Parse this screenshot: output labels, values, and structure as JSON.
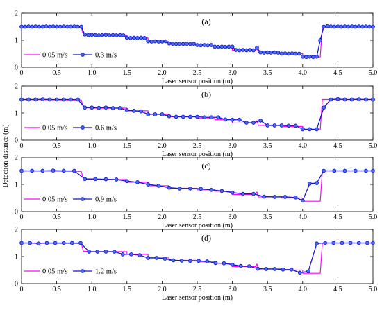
{
  "figure": {
    "ylabel": "Detection distance (m)"
  },
  "chart_data": [
    {
      "type": "line",
      "panel_label": "(a)",
      "xlabel": "Laser sensor position (m)",
      "xlim": [
        0,
        5
      ],
      "ylim": [
        0,
        2
      ],
      "xticks": [
        "0",
        "0.5",
        "1.0",
        "1.5",
        "2.0",
        "2.5",
        "3.0",
        "3.5",
        "4.0",
        "4.5",
        "5.0"
      ],
      "yticks": [
        "0",
        "1",
        "2"
      ],
      "legend_position": "bottom-left",
      "series": [
        {
          "name": "0.05 m/s",
          "color": "#ff00ff",
          "marker": "none",
          "x": [
            0,
            0.85,
            0.88,
            1.0,
            1.5,
            1.5,
            1.8,
            1.8,
            2.1,
            2.1,
            2.5,
            2.5,
            2.75,
            2.75,
            3.0,
            3.0,
            3.33,
            3.35,
            3.37,
            3.7,
            3.7,
            4.0,
            4.0,
            4.25,
            4.28,
            5.0
          ],
          "y": [
            1.5,
            1.48,
            1.2,
            1.18,
            1.18,
            1.08,
            1.08,
            0.95,
            0.95,
            0.86,
            0.86,
            0.8,
            0.8,
            0.75,
            0.75,
            0.63,
            0.63,
            0.72,
            0.54,
            0.54,
            0.5,
            0.5,
            0.38,
            0.38,
            1.5,
            1.5
          ]
        },
        {
          "name": "0.3 m/s",
          "color": "#1414c8",
          "marker": "circle",
          "x": [
            0,
            0.05,
            0.1,
            0.15,
            0.2,
            0.25,
            0.3,
            0.35,
            0.4,
            0.45,
            0.5,
            0.55,
            0.6,
            0.65,
            0.7,
            0.75,
            0.8,
            0.85,
            0.9,
            0.95,
            1.0,
            1.05,
            1.1,
            1.15,
            1.2,
            1.25,
            1.3,
            1.35,
            1.4,
            1.45,
            1.5,
            1.55,
            1.6,
            1.65,
            1.7,
            1.75,
            1.8,
            1.85,
            1.9,
            1.95,
            2.0,
            2.05,
            2.1,
            2.15,
            2.2,
            2.25,
            2.3,
            2.35,
            2.4,
            2.45,
            2.5,
            2.55,
            2.6,
            2.65,
            2.7,
            2.75,
            2.8,
            2.85,
            2.9,
            2.95,
            3.0,
            3.05,
            3.1,
            3.15,
            3.2,
            3.25,
            3.3,
            3.35,
            3.4,
            3.45,
            3.5,
            3.55,
            3.6,
            3.65,
            3.7,
            3.75,
            3.8,
            3.85,
            3.9,
            3.95,
            4.0,
            4.05,
            4.1,
            4.15,
            4.2,
            4.25,
            4.3,
            4.35,
            4.4,
            4.45,
            4.5,
            4.55,
            4.6,
            4.65,
            4.7,
            4.75,
            4.8,
            4.85,
            4.9,
            4.95,
            5.0
          ],
          "y": [
            1.5,
            1.5,
            1.51,
            1.5,
            1.51,
            1.5,
            1.5,
            1.51,
            1.5,
            1.51,
            1.5,
            1.5,
            1.51,
            1.5,
            1.5,
            1.51,
            1.5,
            1.5,
            1.21,
            1.19,
            1.2,
            1.19,
            1.18,
            1.19,
            1.2,
            1.18,
            1.19,
            1.18,
            1.19,
            1.18,
            1.09,
            1.08,
            1.09,
            1.08,
            1.09,
            1.08,
            0.96,
            0.95,
            0.96,
            0.95,
            0.95,
            0.96,
            0.88,
            0.87,
            0.86,
            0.87,
            0.86,
            0.87,
            0.86,
            0.87,
            0.82,
            0.81,
            0.82,
            0.81,
            0.82,
            0.76,
            0.75,
            0.76,
            0.75,
            0.76,
            0.76,
            0.64,
            0.63,
            0.64,
            0.63,
            0.64,
            0.63,
            0.72,
            0.55,
            0.54,
            0.55,
            0.54,
            0.55,
            0.54,
            0.5,
            0.51,
            0.5,
            0.51,
            0.5,
            0.5,
            0.39,
            0.38,
            0.39,
            0.38,
            0.39,
            1.0,
            1.5,
            1.52,
            1.51,
            1.5,
            1.51,
            1.5,
            1.51,
            1.5,
            1.51,
            1.5,
            1.51,
            1.5,
            1.51,
            1.5,
            1.5
          ]
        }
      ]
    },
    {
      "type": "line",
      "panel_label": "(b)",
      "xlabel": "Laser sensor position (m)",
      "xlim": [
        0,
        5
      ],
      "ylim": [
        0,
        2
      ],
      "xticks": [
        "0",
        "0.5",
        "1.0",
        "1.5",
        "2.0",
        "2.5",
        "3.0",
        "3.5",
        "4.0",
        "4.5",
        "5.0"
      ],
      "yticks": [
        "0",
        "1",
        "2"
      ],
      "legend_position": "bottom-left",
      "series": [
        {
          "name": "0.05 m/s",
          "color": "#ff00ff",
          "marker": "none",
          "x": [
            0,
            0.85,
            0.88,
            1.0,
            1.5,
            1.5,
            1.8,
            1.8,
            2.1,
            2.1,
            2.5,
            2.5,
            2.75,
            2.75,
            3.0,
            3.0,
            3.33,
            3.35,
            3.37,
            3.7,
            3.7,
            4.0,
            4.0,
            4.25,
            4.28,
            5.0
          ],
          "y": [
            1.5,
            1.48,
            1.2,
            1.18,
            1.18,
            1.08,
            1.08,
            0.95,
            0.95,
            0.86,
            0.86,
            0.8,
            0.8,
            0.75,
            0.75,
            0.63,
            0.63,
            0.72,
            0.54,
            0.54,
            0.5,
            0.5,
            0.38,
            0.38,
            1.5,
            1.5
          ]
        },
        {
          "name": "0.6 m/s",
          "color": "#1414c8",
          "marker": "circle",
          "x": [
            0,
            0.1,
            0.2,
            0.3,
            0.4,
            0.5,
            0.6,
            0.7,
            0.8,
            0.9,
            1.0,
            1.1,
            1.2,
            1.3,
            1.4,
            1.5,
            1.6,
            1.7,
            1.8,
            1.9,
            2.0,
            2.1,
            2.2,
            2.3,
            2.4,
            2.5,
            2.6,
            2.7,
            2.8,
            2.9,
            3.0,
            3.1,
            3.2,
            3.3,
            3.4,
            3.5,
            3.6,
            3.7,
            3.8,
            3.9,
            4.0,
            4.1,
            4.2,
            4.3,
            4.4,
            4.5,
            4.6,
            4.7,
            4.8,
            4.9,
            5.0
          ],
          "y": [
            1.5,
            1.5,
            1.5,
            1.51,
            1.5,
            1.5,
            1.5,
            1.5,
            1.5,
            1.2,
            1.2,
            1.19,
            1.2,
            1.18,
            1.18,
            1.1,
            1.08,
            1.06,
            0.95,
            0.95,
            0.95,
            0.88,
            0.86,
            0.86,
            0.86,
            0.86,
            0.84,
            0.84,
            0.84,
            0.76,
            0.75,
            0.75,
            0.64,
            0.64,
            0.72,
            0.54,
            0.54,
            0.54,
            0.53,
            0.53,
            0.4,
            0.4,
            0.4,
            1.2,
            1.5,
            1.52,
            1.5,
            1.5,
            1.51,
            1.5,
            1.5
          ]
        }
      ]
    },
    {
      "type": "line",
      "panel_label": "(c)",
      "xlabel": "Laser sensor position (m)",
      "xlim": [
        0,
        5
      ],
      "ylim": [
        0,
        2
      ],
      "xticks": [
        "0",
        "0.5",
        "1.0",
        "1.5",
        "2.0",
        "2.5",
        "3.0",
        "3.5",
        "4.0",
        "4.5",
        "5.0"
      ],
      "yticks": [
        "0",
        "1",
        "2"
      ],
      "legend_position": "bottom-left",
      "series": [
        {
          "name": "0.05 m/s",
          "color": "#ff00ff",
          "marker": "none",
          "x": [
            0,
            0.85,
            0.88,
            1.0,
            1.5,
            1.5,
            1.8,
            1.8,
            2.1,
            2.1,
            2.5,
            2.5,
            2.75,
            2.75,
            3.0,
            3.0,
            3.33,
            3.35,
            3.37,
            3.7,
            3.7,
            4.0,
            4.0,
            4.25,
            4.28,
            5.0
          ],
          "y": [
            1.5,
            1.48,
            1.2,
            1.18,
            1.18,
            1.08,
            1.08,
            0.95,
            0.95,
            0.86,
            0.86,
            0.8,
            0.8,
            0.75,
            0.75,
            0.63,
            0.63,
            0.72,
            0.54,
            0.54,
            0.5,
            0.5,
            0.38,
            0.38,
            1.5,
            1.5
          ]
        },
        {
          "name": "0.9 m/s",
          "color": "#1414c8",
          "marker": "circle",
          "x": [
            0,
            0.15,
            0.3,
            0.45,
            0.6,
            0.75,
            0.9,
            1.05,
            1.2,
            1.35,
            1.5,
            1.65,
            1.8,
            1.95,
            2.1,
            2.25,
            2.4,
            2.55,
            2.7,
            2.85,
            3.0,
            3.15,
            3.3,
            3.45,
            3.6,
            3.75,
            3.9,
            4.0,
            4.1,
            4.2,
            4.3,
            4.45,
            4.6,
            4.75,
            4.9,
            5.0
          ],
          "y": [
            1.5,
            1.5,
            1.5,
            1.51,
            1.5,
            1.5,
            1.2,
            1.2,
            1.19,
            1.18,
            1.12,
            1.08,
            1.0,
            0.95,
            0.88,
            0.85,
            0.85,
            0.84,
            0.8,
            0.76,
            0.7,
            0.65,
            0.65,
            0.55,
            0.54,
            0.54,
            0.52,
            0.4,
            1.03,
            1.05,
            1.5,
            1.5,
            1.5,
            1.5,
            1.5,
            1.5
          ]
        }
      ]
    },
    {
      "type": "line",
      "panel_label": "(d)",
      "xlabel": "Laser sensor position (m)",
      "xlim": [
        0,
        5
      ],
      "ylim": [
        0,
        2
      ],
      "xticks": [
        "0",
        "0.5",
        "1.0",
        "1.5",
        "2.0",
        "2.5",
        "3.0",
        "3.5",
        "4.0",
        "4.5",
        "5.0"
      ],
      "yticks": [
        "0",
        "1",
        "2"
      ],
      "legend_position": "bottom-left",
      "series": [
        {
          "name": "0.05 m/s",
          "color": "#ff00ff",
          "marker": "none",
          "x": [
            0,
            0.85,
            0.88,
            1.0,
            1.5,
            1.5,
            1.8,
            1.8,
            2.1,
            2.1,
            2.5,
            2.5,
            2.75,
            2.75,
            3.0,
            3.0,
            3.33,
            3.35,
            3.37,
            3.7,
            3.7,
            4.0,
            4.0,
            4.25,
            4.28,
            5.0
          ],
          "y": [
            1.5,
            1.48,
            1.2,
            1.18,
            1.18,
            1.08,
            1.08,
            0.95,
            0.95,
            0.86,
            0.86,
            0.8,
            0.8,
            0.75,
            0.75,
            0.63,
            0.63,
            0.72,
            0.54,
            0.54,
            0.5,
            0.5,
            0.38,
            0.38,
            1.5,
            1.5
          ]
        },
        {
          "name": "1.2 m/s",
          "color": "#1414c8",
          "marker": "circle",
          "x": [
            0,
            0.12,
            0.24,
            0.36,
            0.48,
            0.6,
            0.72,
            0.84,
            0.96,
            1.08,
            1.2,
            1.32,
            1.44,
            1.56,
            1.68,
            1.8,
            1.92,
            2.04,
            2.16,
            2.28,
            2.4,
            2.52,
            2.64,
            2.76,
            2.88,
            3.0,
            3.12,
            3.24,
            3.36,
            3.48,
            3.6,
            3.72,
            3.84,
            3.96,
            4.08,
            4.2,
            4.32,
            4.44,
            4.56,
            4.68,
            4.8,
            4.92,
            5.0
          ],
          "y": [
            1.5,
            1.5,
            1.48,
            1.5,
            1.5,
            1.5,
            1.5,
            1.5,
            1.18,
            1.18,
            1.18,
            1.18,
            1.08,
            1.08,
            1.05,
            0.95,
            0.95,
            0.92,
            0.86,
            0.85,
            0.84,
            0.84,
            0.82,
            0.76,
            0.75,
            0.7,
            0.65,
            0.64,
            0.55,
            0.54,
            0.54,
            0.52,
            0.52,
            0.4,
            0.45,
            1.48,
            1.5,
            1.5,
            1.5,
            1.5,
            1.5,
            1.5,
            1.5
          ]
        }
      ]
    }
  ]
}
